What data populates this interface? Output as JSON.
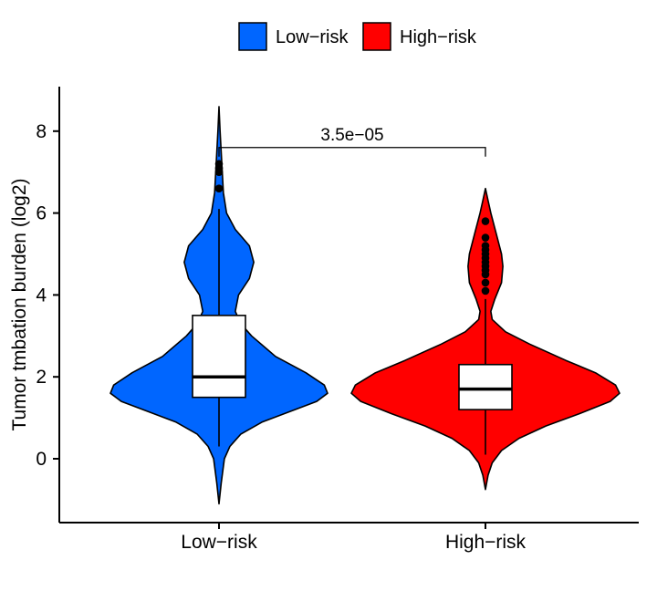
{
  "chart_data": {
    "type": "violin",
    "title": "",
    "xlabel": "",
    "ylabel": "Tumor tmbation burden (log2)",
    "ylim": [
      -1.5,
      9.1
    ],
    "yticks": [
      0,
      2,
      4,
      6,
      8
    ],
    "categories": [
      "Low-risk",
      "High-risk"
    ],
    "legend": {
      "position": "top",
      "entries": [
        {
          "label": "Low−risk",
          "color": "#0066FF"
        },
        {
          "label": "High−risk",
          "color": "#FF0000"
        }
      ]
    },
    "tick_labels": [
      "Low−risk",
      "High−risk"
    ],
    "significance": {
      "label": "3.5e−05",
      "from": "Low-risk",
      "to": "High-risk",
      "y": 7.6
    },
    "groups": [
      {
        "name": "Low-risk",
        "color": "#0066FF",
        "box": {
          "q1": 1.5,
          "median": 2.0,
          "q3": 3.5,
          "whisker_low": 0.3,
          "whisker_high": 6.1
        },
        "outliers": [
          6.6,
          7.0,
          7.1,
          7.2
        ],
        "density": [
          [
            -1.1,
            0.0
          ],
          [
            -0.6,
            0.02
          ],
          [
            0.0,
            0.05
          ],
          [
            0.3,
            0.1
          ],
          [
            0.6,
            0.2
          ],
          [
            0.9,
            0.4
          ],
          [
            1.2,
            0.7
          ],
          [
            1.4,
            0.9
          ],
          [
            1.6,
            1.0
          ],
          [
            1.8,
            0.97
          ],
          [
            2.1,
            0.8
          ],
          [
            2.5,
            0.52
          ],
          [
            3.0,
            0.3
          ],
          [
            3.3,
            0.2
          ],
          [
            3.6,
            0.15
          ],
          [
            4.0,
            0.18
          ],
          [
            4.4,
            0.28
          ],
          [
            4.8,
            0.32
          ],
          [
            5.2,
            0.28
          ],
          [
            5.6,
            0.15
          ],
          [
            6.0,
            0.07
          ],
          [
            6.5,
            0.04
          ],
          [
            7.0,
            0.03
          ],
          [
            7.5,
            0.02
          ],
          [
            8.0,
            0.01
          ],
          [
            8.6,
            0.0
          ]
        ]
      },
      {
        "name": "High-risk",
        "color": "#FF0000",
        "box": {
          "q1": 1.2,
          "median": 1.7,
          "q3": 2.3,
          "whisker_low": 0.1,
          "whisker_high": 3.9
        },
        "outliers": [
          4.1,
          4.3,
          4.5,
          4.6,
          4.7,
          4.8,
          4.9,
          5.0,
          5.1,
          5.2,
          5.4,
          5.8
        ],
        "density": [
          [
            -0.75,
            0.0
          ],
          [
            -0.4,
            0.02
          ],
          [
            -0.1,
            0.05
          ],
          [
            0.2,
            0.12
          ],
          [
            0.5,
            0.25
          ],
          [
            0.8,
            0.45
          ],
          [
            1.1,
            0.7
          ],
          [
            1.4,
            0.93
          ],
          [
            1.6,
            1.0
          ],
          [
            1.8,
            0.97
          ],
          [
            2.1,
            0.82
          ],
          [
            2.4,
            0.6
          ],
          [
            2.8,
            0.33
          ],
          [
            3.1,
            0.15
          ],
          [
            3.4,
            0.05
          ],
          [
            3.6,
            0.04
          ],
          [
            3.9,
            0.07
          ],
          [
            4.3,
            0.12
          ],
          [
            4.7,
            0.13
          ],
          [
            5.0,
            0.12
          ],
          [
            5.5,
            0.08
          ],
          [
            6.0,
            0.04
          ],
          [
            6.3,
            0.02
          ],
          [
            6.6,
            0.0
          ]
        ]
      }
    ]
  }
}
